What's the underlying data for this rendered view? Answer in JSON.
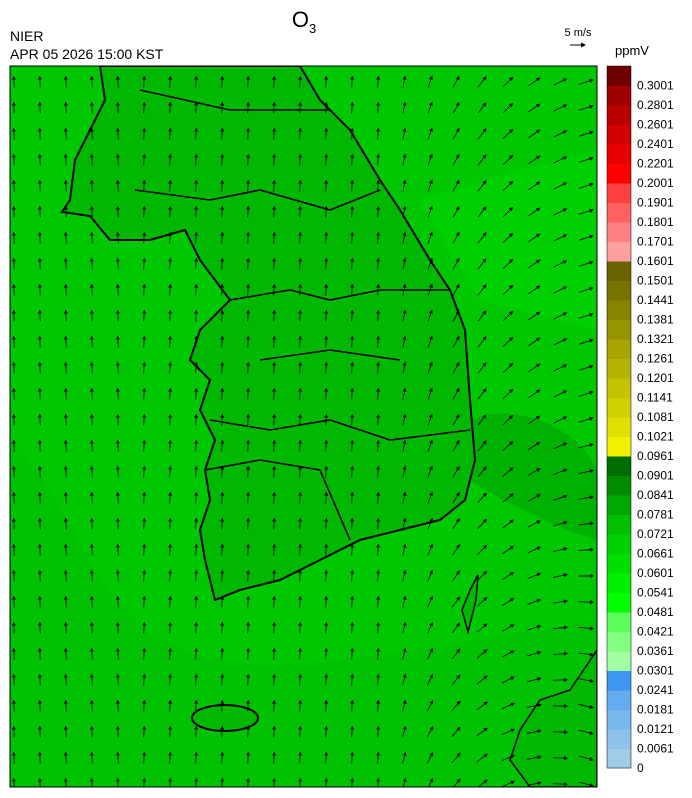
{
  "header": {
    "title": {
      "main": "O",
      "sub": "3"
    },
    "agency": "NIER",
    "timestamp": "APR 05 2026 15:00 KST",
    "wind_scale": "5 m/s",
    "unit": "ppmV"
  },
  "legend": {
    "levels": [
      {
        "label": "0",
        "color": "#a0cce8"
      },
      {
        "label": "0.0061",
        "color": "#8cc2ec"
      },
      {
        "label": "0.0121",
        "color": "#78b8ee"
      },
      {
        "label": "0.0181",
        "color": "#64acf0"
      },
      {
        "label": "0.0241",
        "color": "#3c96f2"
      },
      {
        "label": "0.0301",
        "color": "#a0ffa0"
      },
      {
        "label": "0.0361",
        "color": "#80ff80"
      },
      {
        "label": "0.0421",
        "color": "#5cff5c"
      },
      {
        "label": "0.0481",
        "color": "#00ff00"
      },
      {
        "label": "0.0541",
        "color": "#00f000"
      },
      {
        "label": "0.0601",
        "color": "#00e000"
      },
      {
        "label": "0.0661",
        "color": "#00d000"
      },
      {
        "label": "0.0721",
        "color": "#00c000"
      },
      {
        "label": "0.0781",
        "color": "#00a800"
      },
      {
        "label": "0.0841",
        "color": "#008c00"
      },
      {
        "label": "0.0901",
        "color": "#006e00"
      },
      {
        "label": "0.0961",
        "color": "#f0f000"
      },
      {
        "label": "0.1021",
        "color": "#e0e000"
      },
      {
        "label": "0.1081",
        "color": "#d0d000"
      },
      {
        "label": "0.1141",
        "color": "#c4c400"
      },
      {
        "label": "0.1201",
        "color": "#b4b400"
      },
      {
        "label": "0.1261",
        "color": "#a8a400"
      },
      {
        "label": "0.1321",
        "color": "#989400"
      },
      {
        "label": "0.1381",
        "color": "#888400"
      },
      {
        "label": "0.1441",
        "color": "#787400"
      },
      {
        "label": "0.1501",
        "color": "#686400"
      },
      {
        "label": "0.1601",
        "color": "#ffa0a0"
      },
      {
        "label": "0.1701",
        "color": "#ff8080"
      },
      {
        "label": "0.1801",
        "color": "#ff6060"
      },
      {
        "label": "0.1901",
        "color": "#ff4040"
      },
      {
        "label": "0.2001",
        "color": "#ff0000"
      },
      {
        "label": "0.2201",
        "color": "#e80000"
      },
      {
        "label": "0.2401",
        "color": "#d00000"
      },
      {
        "label": "0.2601",
        "color": "#b80000"
      },
      {
        "label": "0.2801",
        "color": "#a00000"
      },
      {
        "label": "0.3001",
        "color": "#700000"
      }
    ]
  }
}
